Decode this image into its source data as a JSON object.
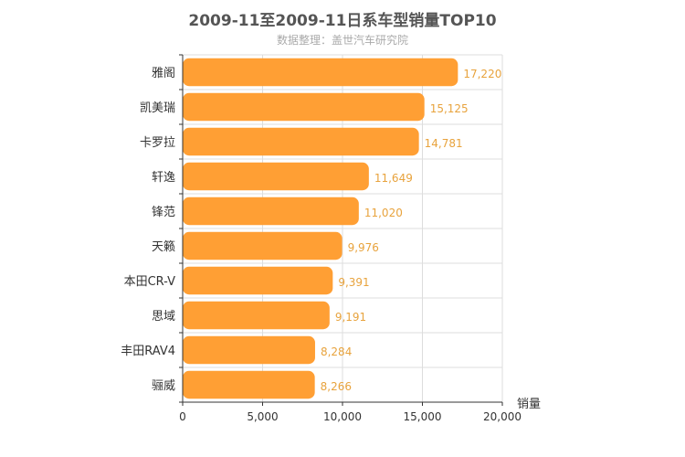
{
  "chart_data": {
    "type": "bar",
    "orientation": "horizontal",
    "title": "2009-11至2009-11日系车型销量TOP10",
    "subtitle": "数据整理：盖世汽车研究院",
    "xlabel": "销量",
    "ylabel": "",
    "categories": [
      "雅阁",
      "凯美瑞",
      "卡罗拉",
      "轩逸",
      "锋范",
      "天籁",
      "本田CR-V",
      "思域",
      "丰田RAV4",
      "骊威"
    ],
    "values": [
      17220,
      15125,
      14781,
      11649,
      11020,
      9976,
      9391,
      9191,
      8284,
      8266
    ],
    "value_labels": [
      "17,220",
      "15,125",
      "14,781",
      "11,649",
      "11,020",
      "9,976",
      "9,391",
      "9,191",
      "8,284",
      "8,266"
    ],
    "xlim": [
      0,
      20000
    ],
    "xticks": [
      0,
      5000,
      10000,
      15000,
      20000
    ],
    "xtick_labels": [
      "0",
      "5,000",
      "10,000",
      "15,000",
      "20,000"
    ],
    "grid": true,
    "legend": "none",
    "colors": {
      "bar": "#ff9f34",
      "value_label": "#e8a33d",
      "axis": "#333333",
      "grid": "#dddddd"
    }
  }
}
